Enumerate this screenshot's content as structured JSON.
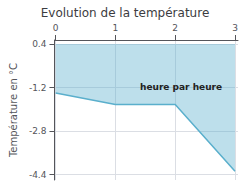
{
  "chart_data": {
    "type": "line",
    "title": "Evolution de la température",
    "ylabel": "Température en °C",
    "annotation": "heure par heure",
    "x": [
      0,
      1.0,
      2.0,
      3.0
    ],
    "values": [
      -1.4,
      -1.82,
      -1.82,
      -4.28
    ],
    "fill_top": 0.4,
    "color": "#5aafcc",
    "xlim": [
      -0.02,
      3.05
    ],
    "ylim": [
      -4.6,
      0.55
    ],
    "xticks": [
      0,
      1,
      2,
      3
    ],
    "yticks": [
      0.4,
      -1.2,
      -2.8,
      -4.4
    ],
    "grid": true
  }
}
